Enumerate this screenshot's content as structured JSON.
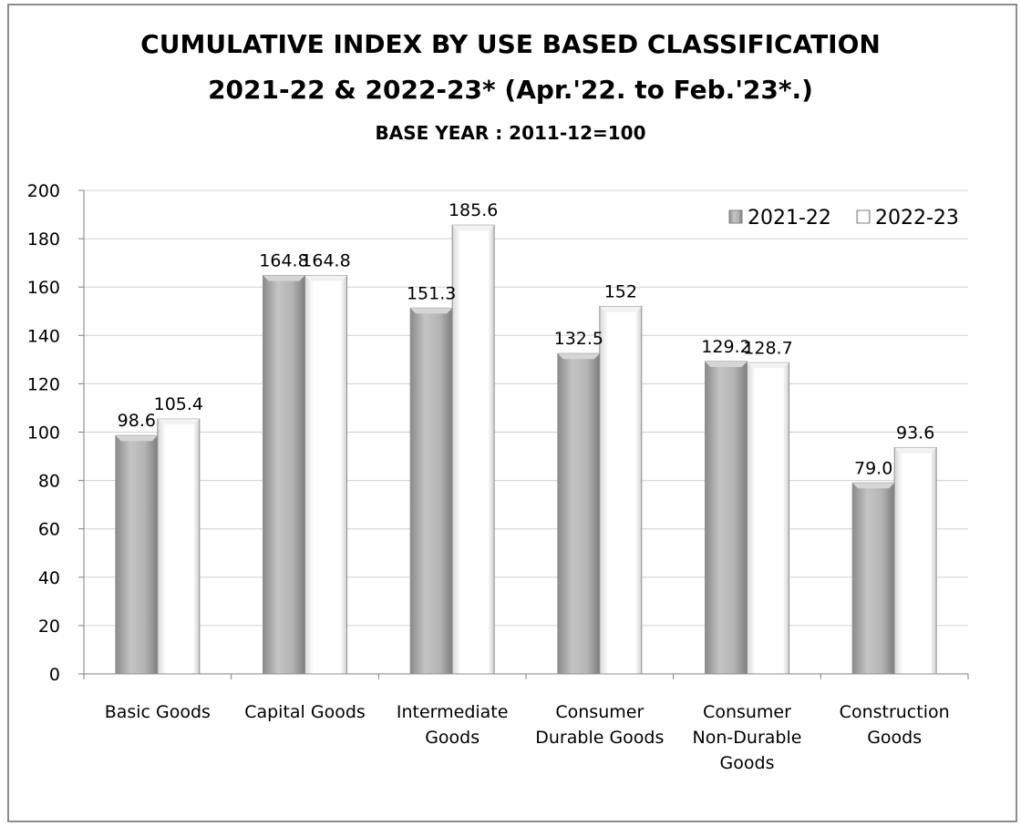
{
  "chart_data": {
    "type": "bar",
    "title": "CUMULATIVE INDEX BY USE BASED CLASSIFICATION",
    "subtitle": "2021-22 & 2022-23* (Apr.'22. to Feb.'23*.)",
    "subtitle2": "BASE YEAR : 2011-12=100",
    "xlabel": "",
    "ylabel": "",
    "ylim": [
      0,
      200
    ],
    "yticks": [
      0,
      20,
      40,
      60,
      80,
      100,
      120,
      140,
      160,
      180,
      200
    ],
    "grid": true,
    "legend_position": "top-right",
    "categories": [
      [
        "Basic Goods"
      ],
      [
        "Capital Goods"
      ],
      [
        "Intermediate",
        "Goods"
      ],
      [
        "Consumer",
        "Durable Goods"
      ],
      [
        "Consumer",
        "Non-Durable",
        "Goods"
      ],
      [
        "Construction",
        "Goods"
      ]
    ],
    "series": [
      {
        "name": "2021-22",
        "color": "#b8b8b8",
        "values": [
          98.6,
          164.8,
          151.3,
          132.5,
          129.2,
          79.0
        ],
        "labels": [
          "98.6",
          "164.8",
          "151.3",
          "132.5",
          "129.2",
          "79.0"
        ]
      },
      {
        "name": "2022-23",
        "color": "#ffffff",
        "values": [
          105.4,
          164.8,
          185.6,
          152,
          128.7,
          93.6
        ],
        "labels": [
          "105.4",
          "164.8",
          "185.6",
          "152",
          "128.7",
          "93.6"
        ]
      }
    ]
  }
}
